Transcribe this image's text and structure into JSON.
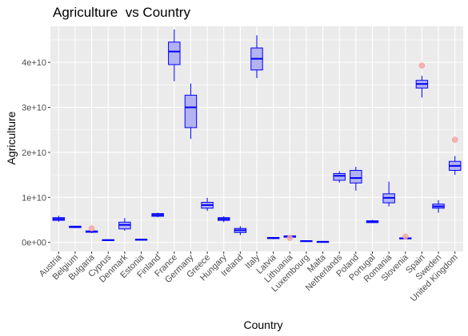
{
  "chart_data": {
    "type": "boxplot",
    "title": "Agriculture  vs Country",
    "xlabel": "Country",
    "ylabel": "Agriculture",
    "ylim": [
      -2000000000,
      48000000000
    ],
    "yticks": [
      0,
      10000000000,
      20000000000,
      30000000000,
      40000000000
    ],
    "ytick_labels": [
      "0e+00",
      "1e+10",
      "2e+10",
      "3e+10",
      "4e+10"
    ],
    "grid": true,
    "colors": {
      "panel": "#ebebeb",
      "grid_major": "#ffffff",
      "box_fill": "#b3b3f2",
      "box_stroke": "#0000ff",
      "outlier": "#f4a8a8"
    },
    "categories": [
      "Austria",
      "Belgium",
      "Bulgaria",
      "Cyprus",
      "Denmark",
      "Estonia",
      "Finland",
      "France",
      "Germany",
      "Greece",
      "Hungary",
      "Ireland",
      "Italy",
      "Latvia",
      "Lithuania",
      "Luxembourg",
      "Malta",
      "Netherlands",
      "Poland",
      "Portugal",
      "Romania",
      "Slovenia",
      "Spain",
      "Sweden",
      "United Kingdom"
    ],
    "boxes": [
      {
        "min": 4600000000.0,
        "q1": 4900000000.0,
        "median": 5200000000.0,
        "q3": 5500000000.0,
        "max": 5900000000.0,
        "outliers": []
      },
      {
        "min": 3200000000.0,
        "q1": 3300000000.0,
        "median": 3500000000.0,
        "q3": 3600000000.0,
        "max": 3700000000.0,
        "outliers": []
      },
      {
        "min": 2100000000.0,
        "q1": 2250000000.0,
        "median": 2400000000.0,
        "q3": 2550000000.0,
        "max": 2700000000.0,
        "outliers": [
          3100000000.0
        ]
      },
      {
        "min": 300000000.0,
        "q1": 400000000.0,
        "median": 500000000.0,
        "q3": 600000000.0,
        "max": 700000000.0,
        "outliers": []
      },
      {
        "min": 2600000000.0,
        "q1": 3000000000.0,
        "median": 3900000000.0,
        "q3": 4500000000.0,
        "max": 5400000000.0,
        "outliers": []
      },
      {
        "min": 400000000.0,
        "q1": 500000000.0,
        "median": 600000000.0,
        "q3": 700000000.0,
        "max": 800000000.0,
        "outliers": []
      },
      {
        "min": 5600000000.0,
        "q1": 5800000000.0,
        "median": 6100000000.0,
        "q3": 6400000000.0,
        "max": 6600000000.0,
        "outliers": []
      },
      {
        "min": 35800000000.0,
        "q1": 39500000000.0,
        "median": 42400000000.0,
        "q3": 44500000000.0,
        "max": 47300000000.0,
        "outliers": []
      },
      {
        "min": 23000000000.0,
        "q1": 25500000000.0,
        "median": 30000000000.0,
        "q3": 32700000000.0,
        "max": 35300000000.0,
        "outliers": []
      },
      {
        "min": 7000000000.0,
        "q1": 7600000000.0,
        "median": 8300000000.0,
        "q3": 8900000000.0,
        "max": 9900000000.0,
        "outliers": []
      },
      {
        "min": 4500000000.0,
        "q1": 4900000000.0,
        "median": 5200000000.0,
        "q3": 5500000000.0,
        "max": 5800000000.0,
        "outliers": []
      },
      {
        "min": 1600000000.0,
        "q1": 2200000000.0,
        "median": 2700000000.0,
        "q3": 3100000000.0,
        "max": 3600000000.0,
        "outliers": []
      },
      {
        "min": 36500000000.0,
        "q1": 38300000000.0,
        "median": 40800000000.0,
        "q3": 43200000000.0,
        "max": 46000000000.0,
        "outliers": []
      },
      {
        "min": 700000000.0,
        "q1": 850000000.0,
        "median": 1000000000.0,
        "q3": 1100000000.0,
        "max": 1200000000.0,
        "outliers": []
      },
      {
        "min": 1000000000.0,
        "q1": 1150000000.0,
        "median": 1350000000.0,
        "q3": 1450000000.0,
        "max": 1600000000.0,
        "outliers": [
          1000000000.0
        ]
      },
      {
        "min": 200000000.0,
        "q1": 250000000.0,
        "median": 300000000.0,
        "q3": 350000000.0,
        "max": 400000000.0,
        "outliers": []
      },
      {
        "min": 100000000.0,
        "q1": 120000000.0,
        "median": 150000000.0,
        "q3": 180000000.0,
        "max": 200000000.0,
        "outliers": []
      },
      {
        "min": 13300000000.0,
        "q1": 13800000000.0,
        "median": 14800000000.0,
        "q3": 15300000000.0,
        "max": 15800000000.0,
        "outliers": []
      },
      {
        "min": 11500000000.0,
        "q1": 13200000000.0,
        "median": 14300000000.0,
        "q3": 16000000000.0,
        "max": 16800000000.0,
        "outliers": []
      },
      {
        "min": 4300000000.0,
        "q1": 4400000000.0,
        "median": 4600000000.0,
        "q3": 4800000000.0,
        "max": 5000000000.0,
        "outliers": []
      },
      {
        "min": 8000000000.0,
        "q1": 8800000000.0,
        "median": 9900000000.0,
        "q3": 10800000000.0,
        "max": 13500000000.0,
        "outliers": []
      },
      {
        "min": 700000000.0,
        "q1": 800000000.0,
        "median": 900000000.0,
        "q3": 1000000000.0,
        "max": 1100000000.0,
        "outliers": [
          1300000000.0
        ]
      },
      {
        "min": 32200000000.0,
        "q1": 34300000000.0,
        "median": 35200000000.0,
        "q3": 36000000000.0,
        "max": 37000000000.0,
        "outliers": [
          39300000000.0
        ]
      },
      {
        "min": 6600000000.0,
        "q1": 7600000000.0,
        "median": 8000000000.0,
        "q3": 8500000000.0,
        "max": 9400000000.0,
        "outliers": []
      },
      {
        "min": 15000000000.0,
        "q1": 16000000000.0,
        "median": 17000000000.0,
        "q3": 18000000000.0,
        "max": 19200000000.0,
        "outliers": [
          22800000000.0
        ]
      }
    ]
  }
}
